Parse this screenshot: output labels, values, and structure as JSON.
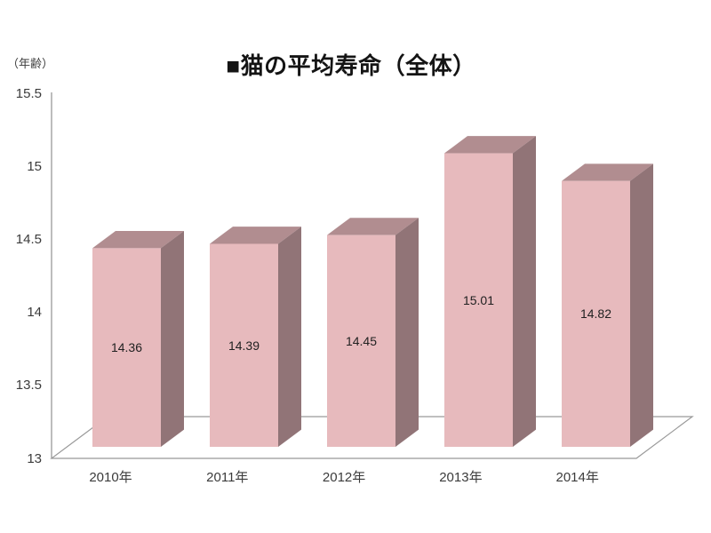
{
  "window": {
    "background": "#ffffff"
  },
  "chart_data": {
    "type": "bar",
    "style": "3d-column",
    "title": "■猫の平均寿命（全体）",
    "unit_label": "（年齢）",
    "categories": [
      "2010年",
      "2011年",
      "2012年",
      "2013年",
      "2014年"
    ],
    "values": [
      14.36,
      14.39,
      14.45,
      15.01,
      14.82
    ],
    "value_labels": [
      "14.36",
      "14.39",
      "14.45",
      "15.01",
      "14.82"
    ],
    "ylim": [
      13,
      15.5
    ],
    "ytick_step": 0.5,
    "yticks": [
      15.5,
      15,
      14.5,
      14,
      13.5,
      13
    ],
    "ytick_labels": [
      "15.5",
      "15",
      "14.5",
      "14",
      "13.5",
      "13"
    ],
    "grid": false,
    "legend": "none",
    "colors": {
      "bar_front": "#e7babd",
      "bar_top": "#b18d90",
      "bar_side": "#917477",
      "floor_fill": "#ffffff",
      "line": "#999999",
      "tick_text": "#3b3b3b",
      "value_text": "#212121",
      "title_text": "#141414"
    }
  }
}
